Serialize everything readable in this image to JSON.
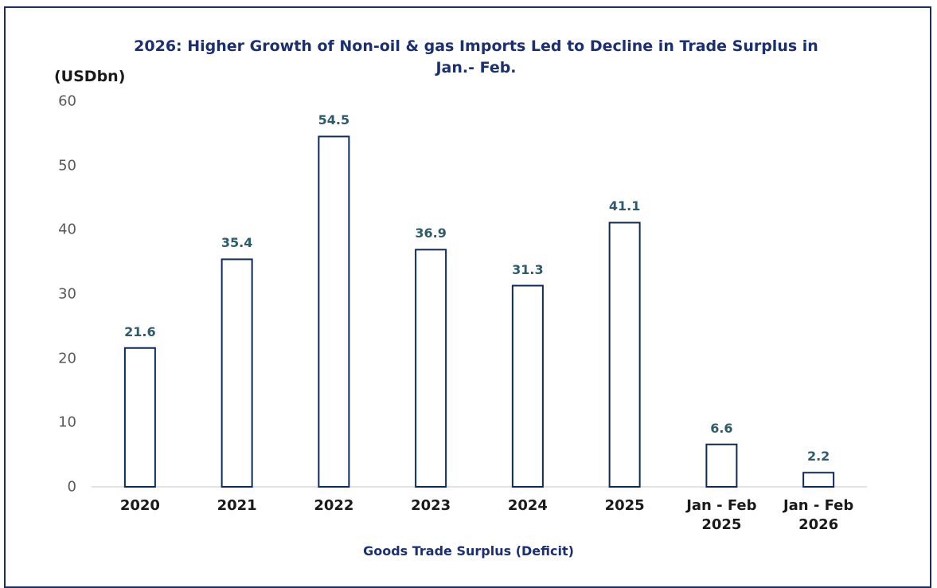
{
  "chart_data": {
    "type": "bar",
    "title": "2026: Higher Growth of Non-oil & gas Imports Led to Decline in Trade Surplus in Jan.- Feb.",
    "y_label": "(USDbn)",
    "x_label": "Goods Trade Surplus (Deficit)",
    "categories": [
      "2020",
      "2021",
      "2022",
      "2023",
      "2024",
      "2025",
      "Jan - Feb 2025",
      "Jan - Feb 2026"
    ],
    "values": [
      21.6,
      35.4,
      54.5,
      36.9,
      31.3,
      41.1,
      6.6,
      2.2
    ],
    "color": "#ffffff",
    "edge_color": "#0d2a5e",
    "ylim": [
      0,
      60
    ],
    "yticks": [
      0,
      10,
      20,
      30,
      40,
      50,
      60
    ],
    "grid": false
  }
}
